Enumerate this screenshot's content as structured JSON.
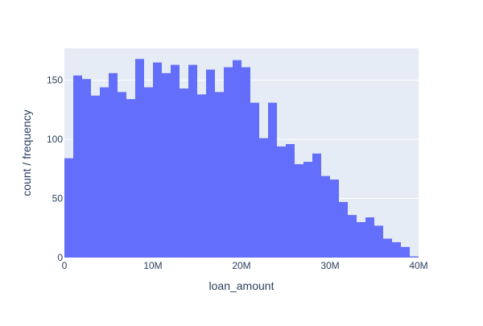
{
  "chart_data": {
    "type": "bar",
    "subtype": "histogram",
    "title": "",
    "xlabel": "loan_amount",
    "ylabel": "count / frequency",
    "xlim": [
      0,
      40000000
    ],
    "ylim": [
      0,
      177
    ],
    "bin_width": 1000000,
    "bin_starts": [
      0,
      1000000,
      2000000,
      3000000,
      4000000,
      5000000,
      6000000,
      7000000,
      8000000,
      9000000,
      10000000,
      11000000,
      12000000,
      13000000,
      14000000,
      15000000,
      16000000,
      17000000,
      18000000,
      19000000,
      20000000,
      21000000,
      22000000,
      23000000,
      24000000,
      25000000,
      26000000,
      27000000,
      28000000,
      29000000,
      30000000,
      31000000,
      32000000,
      33000000,
      34000000,
      35000000,
      36000000,
      37000000,
      38000000,
      39000000
    ],
    "values": [
      84,
      154,
      151,
      137,
      144,
      156,
      140,
      134,
      168,
      144,
      165,
      156,
      163,
      143,
      163,
      138,
      159,
      140,
      161,
      167,
      161,
      131,
      101,
      131,
      94,
      96,
      79,
      81,
      88,
      69,
      66,
      47,
      36,
      30,
      34,
      27,
      16,
      13,
      9,
      1
    ],
    "x_ticks": [
      {
        "value": 0,
        "label": "0"
      },
      {
        "value": 10000000,
        "label": "10M"
      },
      {
        "value": 20000000,
        "label": "20M"
      },
      {
        "value": 30000000,
        "label": "30M"
      },
      {
        "value": 40000000,
        "label": "40M"
      }
    ],
    "y_ticks": [
      {
        "value": 0,
        "label": "0"
      },
      {
        "value": 50,
        "label": "50"
      },
      {
        "value": 100,
        "label": "100"
      },
      {
        "value": 150,
        "label": "150"
      }
    ],
    "grid": true,
    "colors": {
      "bar": "#636efa",
      "plot_background": "#e5ecf6",
      "grid": "#ffffff",
      "text": "#2a3f5f"
    }
  }
}
